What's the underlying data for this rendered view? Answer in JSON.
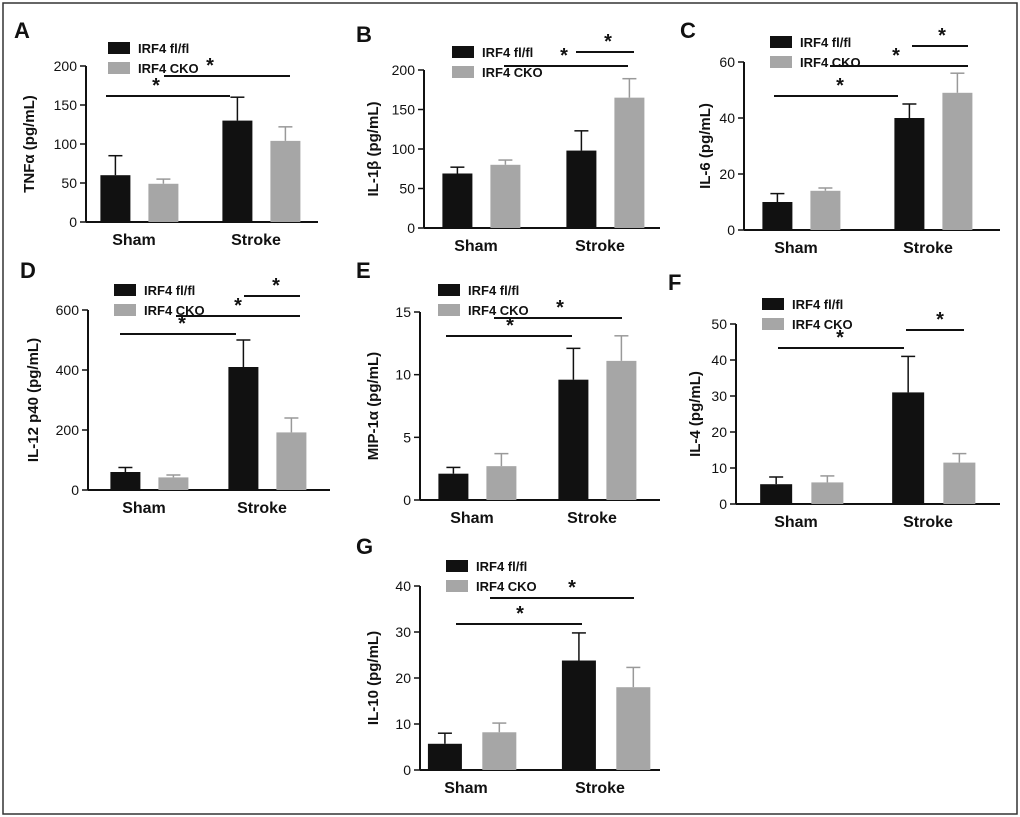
{
  "figure": {
    "background": "#ffffff",
    "frame_color": "#333333"
  },
  "series_colors": {
    "IRF4 fl/fl": "#111111",
    "IRF4 CKO": "#a6a6a6"
  },
  "chart_data": [
    {
      "panel": "A",
      "type": "bar",
      "ylabel": "TNFα (pg/mL)",
      "ylim": [
        0,
        200
      ],
      "yticks": [
        0,
        50,
        100,
        150,
        200
      ],
      "categories": [
        "Sham",
        "Stroke"
      ],
      "legend": [
        "IRF4 fl/fl",
        "IRF4 CKO"
      ],
      "series": [
        {
          "name": "IRF4 fl/fl",
          "values": [
            60,
            130
          ],
          "errors": [
            25,
            30
          ]
        },
        {
          "name": "IRF4 CKO",
          "values": [
            49,
            104
          ],
          "errors": [
            6,
            18
          ]
        }
      ],
      "significance": [
        {
          "from": [
            0,
            0
          ],
          "to": [
            1,
            0
          ],
          "label": "*"
        },
        {
          "from": [
            0,
            1
          ],
          "to": [
            1,
            1
          ],
          "label": "*"
        }
      ]
    },
    {
      "panel": "B",
      "type": "bar",
      "ylabel": "IL-1β (pg/mL)",
      "ylim": [
        0,
        200
      ],
      "yticks": [
        0,
        50,
        100,
        150,
        200
      ],
      "categories": [
        "Sham",
        "Stroke"
      ],
      "legend": [
        "IRF4 fl/fl",
        "IRF4 CKO"
      ],
      "series": [
        {
          "name": "IRF4 fl/fl",
          "values": [
            69,
            98
          ],
          "errors": [
            8,
            25
          ]
        },
        {
          "name": "IRF4 CKO",
          "values": [
            80,
            165
          ],
          "errors": [
            6,
            24
          ]
        }
      ],
      "significance": [
        {
          "from": [
            0,
            1
          ],
          "to": [
            1,
            1
          ],
          "label": "*"
        },
        {
          "from": [
            1,
            0
          ],
          "to": [
            1,
            1
          ],
          "label": "*"
        }
      ]
    },
    {
      "panel": "C",
      "type": "bar",
      "ylabel": "IL-6 (pg/mL)",
      "ylim": [
        0,
        60
      ],
      "yticks": [
        0,
        20,
        40,
        60
      ],
      "categories": [
        "Sham",
        "Stroke"
      ],
      "legend": [
        "IRF4 fl/fl",
        "IRF4 CKO"
      ],
      "series": [
        {
          "name": "IRF4 fl/fl",
          "values": [
            10,
            40
          ],
          "errors": [
            3,
            5
          ]
        },
        {
          "name": "IRF4 CKO",
          "values": [
            14,
            49
          ],
          "errors": [
            1,
            7
          ]
        }
      ],
      "significance": [
        {
          "from": [
            0,
            0
          ],
          "to": [
            1,
            0
          ],
          "label": "*"
        },
        {
          "from": [
            0,
            1
          ],
          "to": [
            1,
            1
          ],
          "label": "*"
        },
        {
          "from": [
            1,
            0
          ],
          "to": [
            1,
            1
          ],
          "label": "*"
        }
      ]
    },
    {
      "panel": "D",
      "type": "bar",
      "ylabel": "IL-12 p40 (pg/mL)",
      "ylim": [
        0,
        600
      ],
      "yticks": [
        0,
        200,
        400,
        600
      ],
      "categories": [
        "Sham",
        "Stroke"
      ],
      "legend": [
        "IRF4 fl/fl",
        "IRF4 CKO"
      ],
      "series": [
        {
          "name": "IRF4 fl/fl",
          "values": [
            60,
            410
          ],
          "errors": [
            15,
            90
          ]
        },
        {
          "name": "IRF4 CKO",
          "values": [
            42,
            192
          ],
          "errors": [
            8,
            48
          ]
        }
      ],
      "significance": [
        {
          "from": [
            0,
            0
          ],
          "to": [
            1,
            0
          ],
          "label": "*"
        },
        {
          "from": [
            0,
            1
          ],
          "to": [
            1,
            1
          ],
          "label": "*"
        },
        {
          "from": [
            1,
            0
          ],
          "to": [
            1,
            1
          ],
          "label": "*"
        }
      ]
    },
    {
      "panel": "E",
      "type": "bar",
      "ylabel": "MIP-1α (pg/mL)",
      "ylim": [
        0,
        15
      ],
      "yticks": [
        0,
        5,
        10,
        15
      ],
      "categories": [
        "Sham",
        "Stroke"
      ],
      "legend": [
        "IRF4 fl/fl",
        "IRF4 CKO"
      ],
      "series": [
        {
          "name": "IRF4 fl/fl",
          "values": [
            2.1,
            9.6
          ],
          "errors": [
            0.5,
            2.5
          ]
        },
        {
          "name": "IRF4 CKO",
          "values": [
            2.7,
            11.1
          ],
          "errors": [
            1.0,
            2.0
          ]
        }
      ],
      "significance": [
        {
          "from": [
            0,
            0
          ],
          "to": [
            1,
            0
          ],
          "label": "*"
        },
        {
          "from": [
            0,
            1
          ],
          "to": [
            1,
            1
          ],
          "label": "*"
        }
      ]
    },
    {
      "panel": "F",
      "type": "bar",
      "ylabel": "IL-4 (pg/mL)",
      "ylim": [
        0,
        50
      ],
      "yticks": [
        0,
        10,
        20,
        30,
        40,
        50
      ],
      "categories": [
        "Sham",
        "Stroke"
      ],
      "legend": [
        "IRF4 fl/fl",
        "IRF4 CKO"
      ],
      "series": [
        {
          "name": "IRF4 fl/fl",
          "values": [
            5.5,
            31
          ],
          "errors": [
            2,
            10
          ]
        },
        {
          "name": "IRF4 CKO",
          "values": [
            6,
            11.5
          ],
          "errors": [
            1.8,
            2.5
          ]
        }
      ],
      "significance": [
        {
          "from": [
            0,
            0
          ],
          "to": [
            1,
            0
          ],
          "label": "*"
        },
        {
          "from": [
            1,
            0
          ],
          "to": [
            1,
            1
          ],
          "label": "*"
        }
      ]
    },
    {
      "panel": "G",
      "type": "bar",
      "ylabel": "IL-10 (pg/mL)",
      "ylim": [
        0,
        40
      ],
      "yticks": [
        0,
        10,
        20,
        30,
        40
      ],
      "categories": [
        "Sham",
        "Stroke"
      ],
      "legend": [
        "IRF4 fl/fl",
        "IRF4 CKO"
      ],
      "series": [
        {
          "name": "IRF4 fl/fl",
          "values": [
            5.7,
            23.8
          ],
          "errors": [
            2.3,
            6
          ]
        },
        {
          "name": "IRF4 CKO",
          "values": [
            8.2,
            18
          ],
          "errors": [
            2,
            4.3
          ]
        }
      ],
      "significance": [
        {
          "from": [
            0,
            0
          ],
          "to": [
            1,
            0
          ],
          "label": "*"
        },
        {
          "from": [
            0,
            1
          ],
          "to": [
            1,
            1
          ],
          "label": "*"
        }
      ]
    }
  ]
}
